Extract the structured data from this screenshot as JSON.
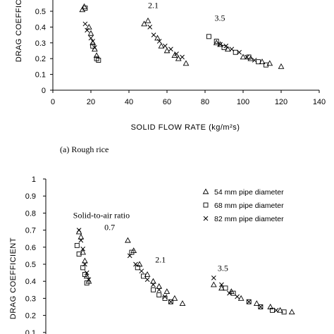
{
  "chart_data": [
    {
      "type": "scatter",
      "title": "",
      "xlabel": "SOLID FLOW RATE (kg/m²s)",
      "ylabel": "DRAG COEFFICIENT",
      "xlim": [
        0,
        140
      ],
      "ylim": [
        0,
        0.5
      ],
      "xticks": [
        "0",
        "20",
        "40",
        "60",
        "80",
        "100",
        "120",
        "140"
      ],
      "yticks": [
        "0",
        "0.1",
        "0.2",
        "0.3",
        "0.4",
        "0.5"
      ],
      "caption": "(a) Rough rice",
      "annotations": [
        {
          "text": "2.1",
          "x": 50,
          "y": 0.52
        },
        {
          "text": "3.5",
          "x": 85,
          "y": 0.44
        }
      ],
      "series": [
        {
          "marker": "triangle",
          "points": [
            [
              15.5,
              0.51
            ],
            [
              16.5,
              0.53
            ],
            [
              19,
              0.4
            ],
            [
              20,
              0.36
            ],
            [
              21,
              0.3
            ],
            [
              22,
              0.26
            ],
            [
              23,
              0.22
            ],
            [
              48,
              0.42
            ],
            [
              50,
              0.44
            ],
            [
              55,
              0.33
            ],
            [
              57,
              0.28
            ],
            [
              60,
              0.25
            ],
            [
              64,
              0.22
            ],
            [
              66,
              0.2
            ],
            [
              70,
              0.17
            ],
            [
              86,
              0.3
            ],
            [
              88,
              0.29
            ],
            [
              92,
              0.26
            ],
            [
              100,
              0.21
            ],
            [
              104,
              0.2
            ],
            [
              110,
              0.18
            ],
            [
              114,
              0.17
            ],
            [
              120,
              0.15
            ]
          ]
        },
        {
          "marker": "square",
          "points": [
            [
              17,
              0.52
            ],
            [
              21,
              0.28
            ],
            [
              23,
              0.2
            ],
            [
              24,
              0.19
            ],
            [
              82,
              0.34
            ],
            [
              86,
              0.31
            ],
            [
              90,
              0.27
            ],
            [
              96,
              0.24
            ],
            [
              103,
              0.21
            ],
            [
              108,
              0.18
            ],
            [
              112,
              0.16
            ]
          ]
        },
        {
          "marker": "x",
          "points": [
            [
              17,
              0.42
            ],
            [
              18,
              0.38
            ],
            [
              20,
              0.33
            ],
            [
              21,
              0.31
            ],
            [
              22,
              0.27
            ],
            [
              51,
              0.4
            ],
            [
              53,
              0.35
            ],
            [
              56,
              0.31
            ],
            [
              59,
              0.28
            ],
            [
              62,
              0.26
            ],
            [
              65,
              0.23
            ],
            [
              68,
              0.21
            ],
            [
              88,
              0.29
            ],
            [
              91,
              0.28
            ],
            [
              94,
              0.26
            ],
            [
              98,
              0.24
            ],
            [
              102,
              0.21
            ],
            [
              106,
              0.19
            ]
          ]
        }
      ]
    },
    {
      "type": "scatter",
      "title": "",
      "xlabel": "",
      "ylabel": "DRAG COEFFICIENT",
      "xlim": [
        0,
        140
      ],
      "ylim": [
        0.1,
        1
      ],
      "yticks": [
        "1",
        "0.9",
        "0.8",
        "0.7",
        "0.6",
        "0.5",
        "0.4",
        "0.3",
        "0.2",
        "0.1"
      ],
      "legend_placement": "top-right",
      "annotations": [
        {
          "text": "Solid-to-air ratio",
          "x": 14,
          "y": 0.77
        },
        {
          "text": "0.7",
          "x": 30,
          "y": 0.7
        },
        {
          "text": "2.1",
          "x": 56,
          "y": 0.51
        },
        {
          "text": "3.5",
          "x": 88,
          "y": 0.46
        }
      ],
      "series": [
        {
          "name": "54 mm pipe diameter",
          "marker": "triangle",
          "points": [
            [
              17,
              0.69
            ],
            [
              18,
              0.66
            ],
            [
              19,
              0.57
            ],
            [
              20,
              0.52
            ],
            [
              21,
              0.43
            ],
            [
              22,
              0.4
            ],
            [
              42,
              0.64
            ],
            [
              45,
              0.58
            ],
            [
              48,
              0.5
            ],
            [
              52,
              0.44
            ],
            [
              55,
              0.4
            ],
            [
              58,
              0.37
            ],
            [
              62,
              0.34
            ],
            [
              66,
              0.3
            ],
            [
              70,
              0.27
            ],
            [
              86,
              0.38
            ],
            [
              90,
              0.36
            ],
            [
              95,
              0.34
            ],
            [
              100,
              0.3
            ],
            [
              108,
              0.27
            ],
            [
              115,
              0.25
            ],
            [
              120,
              0.23
            ],
            [
              126,
              0.22
            ]
          ]
        },
        {
          "name": "68 mm pipe diameter",
          "marker": "square",
          "points": [
            [
              16,
              0.61
            ],
            [
              17,
              0.56
            ],
            [
              19,
              0.48
            ],
            [
              20,
              0.44
            ],
            [
              21,
              0.39
            ],
            [
              44,
              0.57
            ],
            [
              47,
              0.48
            ],
            [
              50,
              0.43
            ],
            [
              55,
              0.35
            ],
            [
              58,
              0.32
            ],
            [
              61,
              0.3
            ],
            [
              64,
              0.28
            ],
            [
              92,
              0.36
            ],
            [
              96,
              0.33
            ],
            [
              104,
              0.28
            ],
            [
              110,
              0.25
            ],
            [
              116,
              0.23
            ],
            [
              122,
              0.22
            ]
          ]
        },
        {
          "name": "82 mm pipe diameter",
          "marker": "x",
          "points": [
            [
              17,
              0.7
            ],
            [
              18,
              0.64
            ],
            [
              19,
              0.59
            ],
            [
              20,
              0.5
            ],
            [
              21,
              0.45
            ],
            [
              22,
              0.41
            ],
            [
              43,
              0.55
            ],
            [
              46,
              0.5
            ],
            [
              49,
              0.46
            ],
            [
              52,
              0.41
            ],
            [
              55,
              0.38
            ],
            [
              58,
              0.35
            ],
            [
              61,
              0.31
            ],
            [
              64,
              0.28
            ],
            [
              86,
              0.42
            ],
            [
              90,
              0.38
            ],
            [
              94,
              0.33
            ],
            [
              98,
              0.31
            ],
            [
              104,
              0.28
            ],
            [
              110,
              0.25
            ],
            [
              118,
              0.23
            ]
          ]
        }
      ]
    }
  ]
}
